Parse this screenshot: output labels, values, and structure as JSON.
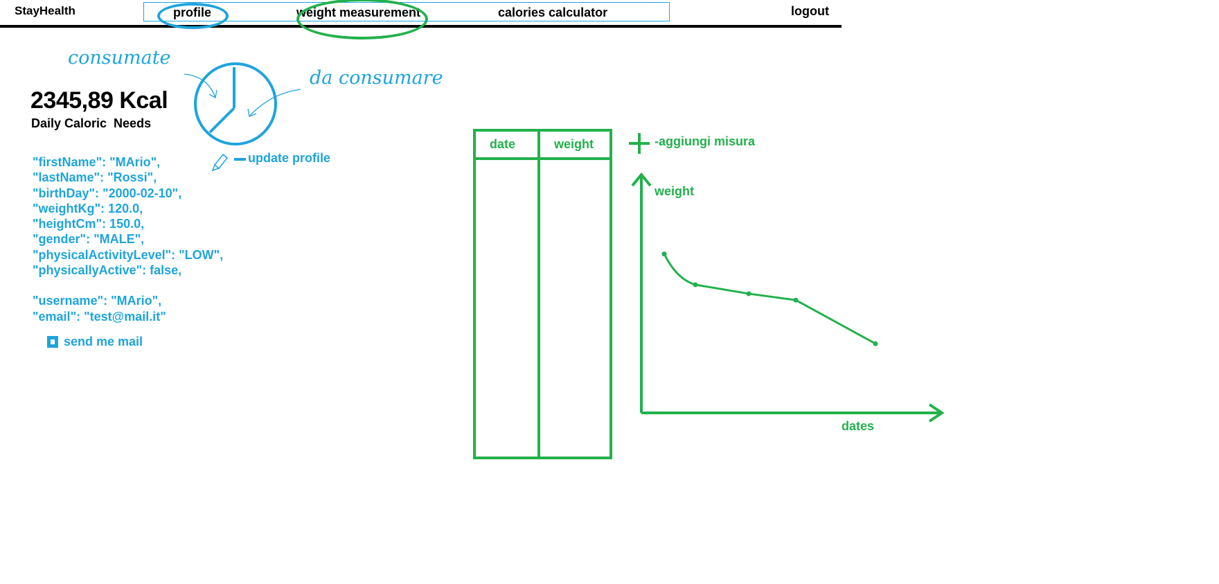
{
  "header": {
    "brand": "StayHealth",
    "nav": [
      "profile",
      "weight measurement",
      "calories calculator"
    ],
    "logout": "logout"
  },
  "colors": {
    "annotation_blue": "#1ea4dc",
    "annotation_green": "#22b14c"
  },
  "annotations": {
    "consumed": "consumate",
    "to_consume": "da consumare"
  },
  "calories": {
    "value": "2345,89 Kcal",
    "label": "Daily Caloric  Needs"
  },
  "profile": {
    "update_label": "update profile",
    "fields": [
      "\"firstName\": \"MArio\",",
      "\"lastName\": \"Rossi\",",
      "\"birthDay\": \"2000-02-10\",",
      "\"weightKg\": 120.0,",
      "\"heightCm\": 150.0,",
      "\"gender\": \"MALE\",",
      "\"physicalActivityLevel\": \"LOW\",",
      "\"physicallyActive\": false,",
      "",
      "\"username\": \"MArio\",",
      "\"email\": \"test@mail.it\""
    ],
    "send_mail_label": "send me mail"
  },
  "weights": {
    "columns": [
      "date",
      "weight"
    ],
    "add_label": "-aggiungi misura"
  },
  "chart_data": {
    "type": "line",
    "xlabel": "dates",
    "ylabel": "weight",
    "series": [
      {
        "points": [
          [
            0,
            124
          ],
          [
            1,
            100
          ],
          [
            2,
            93
          ],
          [
            3,
            88
          ],
          [
            4,
            54
          ]
        ]
      }
    ]
  },
  "icons": [
    "pie-chart-icon",
    "pencil-icon",
    "plus-icon",
    "checkbox-icon"
  ]
}
